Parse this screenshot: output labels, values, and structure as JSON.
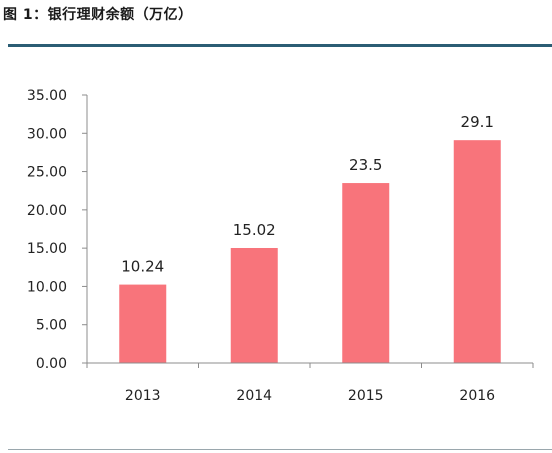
{
  "title": "图 1：银行理财余额（万亿）",
  "chart_data": {
    "type": "bar",
    "categories": [
      "2013",
      "2014",
      "2015",
      "2016"
    ],
    "values": [
      10.24,
      15.02,
      23.5,
      29.1
    ],
    "data_labels": [
      "10.24",
      "15.02",
      "23.5",
      "29.1"
    ],
    "ylim": [
      0,
      35
    ],
    "yticks": [
      0,
      5,
      10,
      15,
      20,
      25,
      30,
      35
    ],
    "ytick_labels": [
      "0.00",
      "5.00",
      "10.00",
      "15.00",
      "20.00",
      "25.00",
      "30.00",
      "35.00"
    ],
    "bar_color": "#f8747b",
    "axis_color": "#8c8c8c",
    "grid": false,
    "legend": "none"
  }
}
